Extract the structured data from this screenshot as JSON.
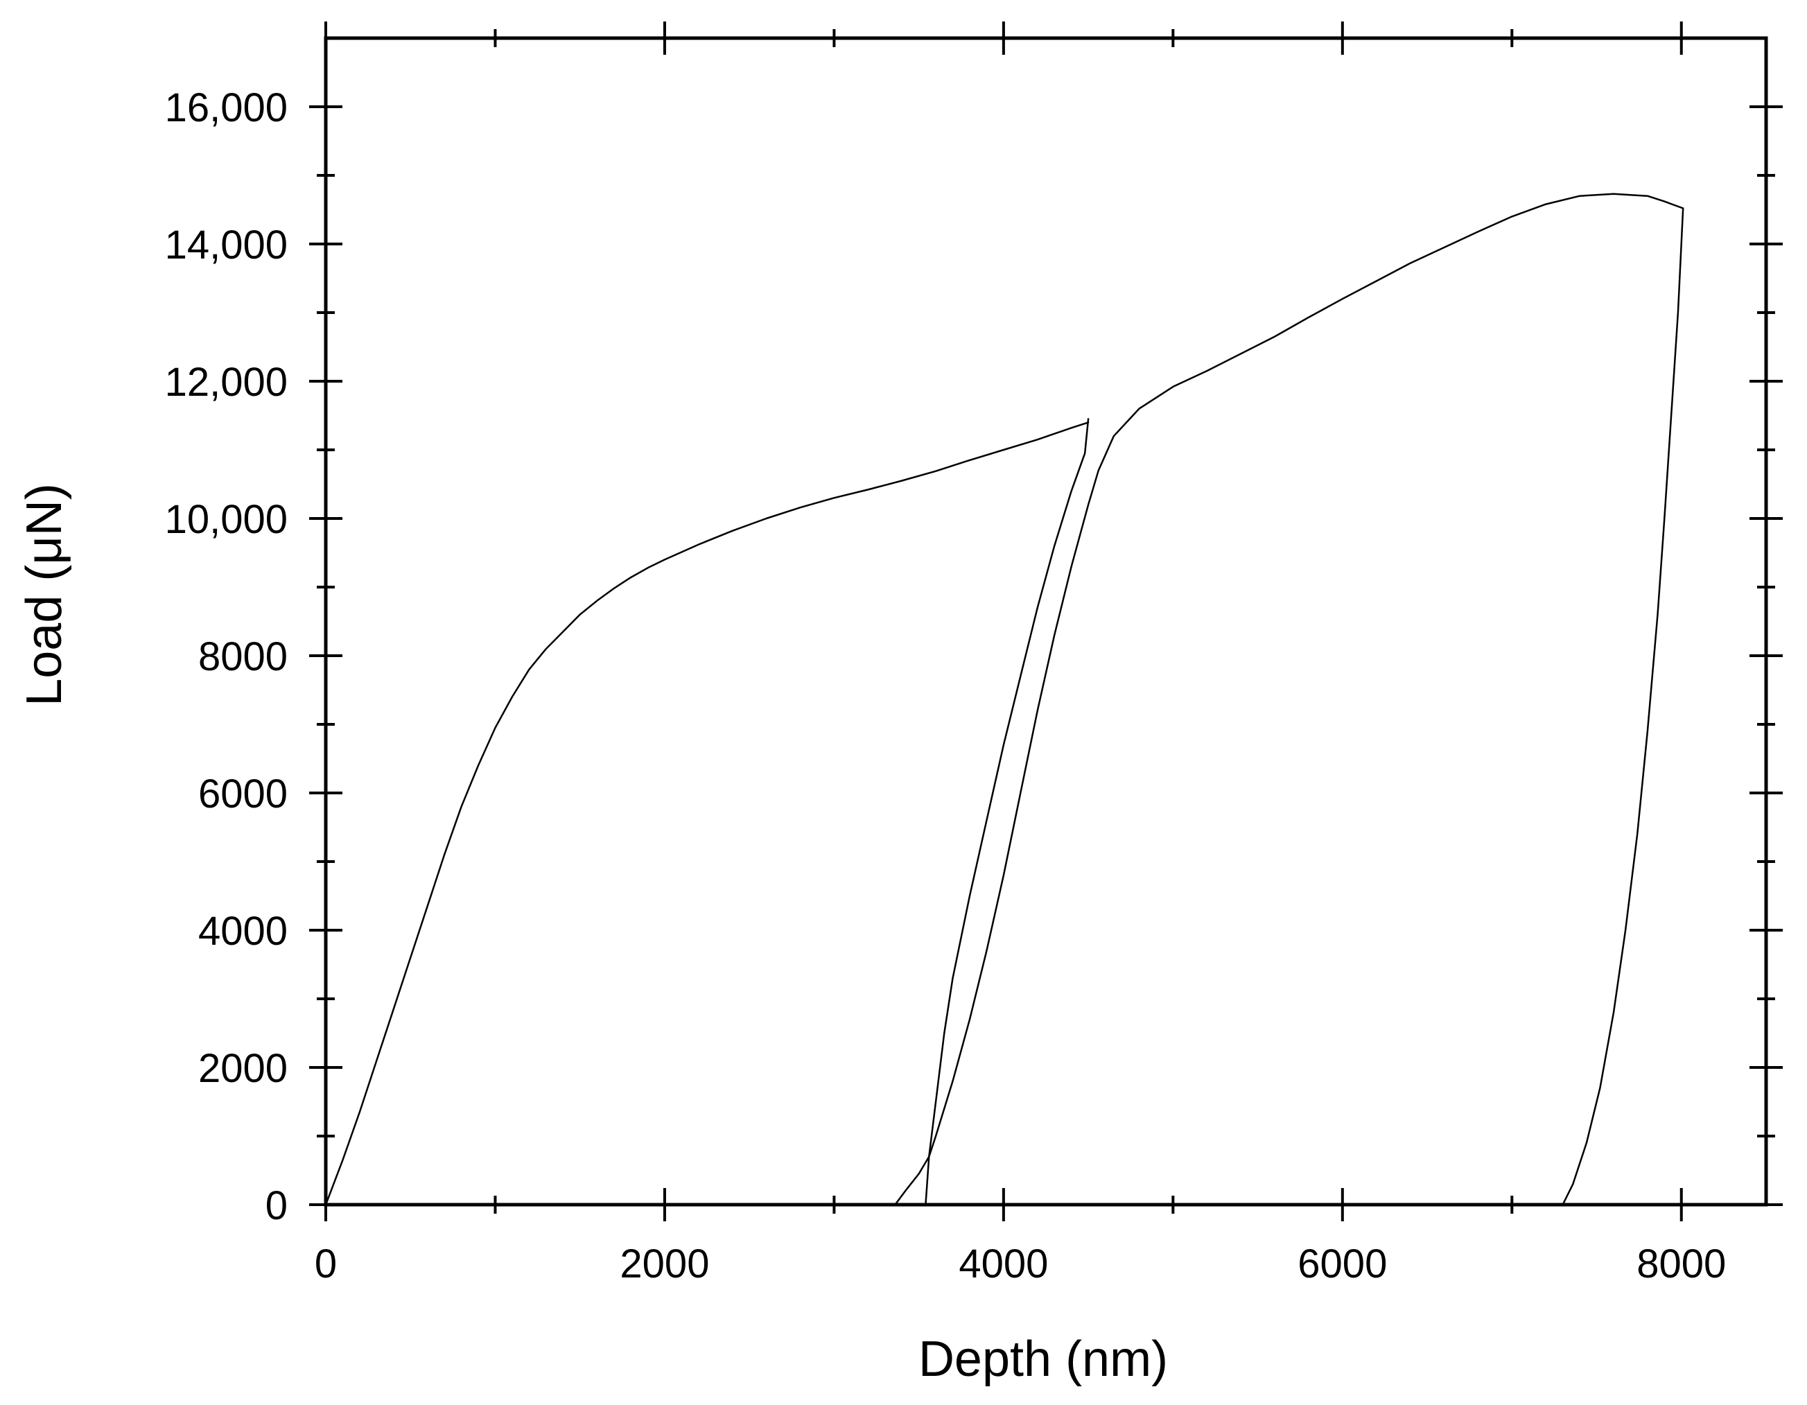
{
  "chart_data": {
    "type": "line",
    "title": "",
    "xlabel": "Depth (nm)",
    "ylabel": "Load (μN)",
    "xlim": [
      0,
      8500
    ],
    "ylim": [
      0,
      17000
    ],
    "grid": false,
    "legend": "none",
    "x_ticks": [
      {
        "value": 0,
        "label": "0"
      },
      {
        "value": 2000,
        "label": "2000"
      },
      {
        "value": 4000,
        "label": "4000"
      },
      {
        "value": 6000,
        "label": "6000"
      },
      {
        "value": 8000,
        "label": "8000"
      }
    ],
    "x_minor_ticks": [
      1000,
      3000,
      5000,
      7000
    ],
    "y_ticks": [
      {
        "value": 0,
        "label": "0"
      },
      {
        "value": 2000,
        "label": "2000"
      },
      {
        "value": 4000,
        "label": "4000"
      },
      {
        "value": 6000,
        "label": "6000"
      },
      {
        "value": 8000,
        "label": "8000"
      },
      {
        "value": 10000,
        "label": "10,000"
      },
      {
        "value": 12000,
        "label": "12,000"
      },
      {
        "value": 14000,
        "label": "14,000"
      },
      {
        "value": 16000,
        "label": "16,000"
      }
    ],
    "y_minor_ticks": [
      1000,
      3000,
      5000,
      7000,
      9000,
      11000,
      13000,
      15000
    ],
    "series": [
      {
        "color": "#000000",
        "points": [
          [
            0,
            0
          ],
          [
            100,
            650
          ],
          [
            200,
            1350
          ],
          [
            300,
            2100
          ],
          [
            400,
            2850
          ],
          [
            500,
            3600
          ],
          [
            600,
            4350
          ],
          [
            700,
            5100
          ],
          [
            800,
            5800
          ],
          [
            900,
            6400
          ],
          [
            1000,
            6950
          ],
          [
            1100,
            7400
          ],
          [
            1200,
            7800
          ],
          [
            1300,
            8100
          ],
          [
            1400,
            8350
          ],
          [
            1500,
            8600
          ],
          [
            1600,
            8800
          ],
          [
            1700,
            8980
          ],
          [
            1800,
            9140
          ],
          [
            1900,
            9280
          ],
          [
            2000,
            9400
          ],
          [
            2200,
            9620
          ],
          [
            2400,
            9820
          ],
          [
            2600,
            10000
          ],
          [
            2800,
            10160
          ],
          [
            3000,
            10300
          ],
          [
            3200,
            10420
          ],
          [
            3400,
            10550
          ],
          [
            3600,
            10690
          ],
          [
            3800,
            10850
          ],
          [
            4000,
            11000
          ],
          [
            4200,
            11150
          ],
          [
            4400,
            11320
          ],
          [
            4500,
            11400
          ]
        ]
      },
      {
        "color": "#000000",
        "points": [
          [
            4500,
            11450
          ],
          [
            4480,
            10950
          ],
          [
            4400,
            10400
          ],
          [
            4300,
            9600
          ],
          [
            4200,
            8700
          ],
          [
            4100,
            7700
          ],
          [
            4000,
            6700
          ],
          [
            3900,
            5600
          ],
          [
            3800,
            4500
          ],
          [
            3700,
            3300
          ],
          [
            3650,
            2500
          ],
          [
            3600,
            1500
          ],
          [
            3560,
            700
          ],
          [
            3540,
            0
          ]
        ]
      },
      {
        "color": "#000000",
        "points": [
          [
            3360,
            0
          ],
          [
            3420,
            200
          ],
          [
            3500,
            450
          ],
          [
            3560,
            700
          ],
          [
            3600,
            1000
          ],
          [
            3700,
            1800
          ],
          [
            3800,
            2700
          ],
          [
            3900,
            3700
          ],
          [
            4000,
            4800
          ],
          [
            4100,
            6000
          ],
          [
            4200,
            7200
          ],
          [
            4300,
            8300
          ],
          [
            4400,
            9300
          ],
          [
            4500,
            10200
          ],
          [
            4560,
            10700
          ],
          [
            4650,
            11200
          ],
          [
            4800,
            11600
          ],
          [
            5000,
            11920
          ],
          [
            5200,
            12150
          ],
          [
            5400,
            12400
          ],
          [
            5600,
            12650
          ],
          [
            5800,
            12930
          ],
          [
            6000,
            13200
          ],
          [
            6200,
            13460
          ],
          [
            6400,
            13720
          ],
          [
            6600,
            13950
          ],
          [
            6800,
            14180
          ],
          [
            7000,
            14400
          ],
          [
            7200,
            14580
          ],
          [
            7400,
            14700
          ],
          [
            7600,
            14730
          ],
          [
            7800,
            14700
          ],
          [
            7900,
            14620
          ],
          [
            8010,
            14520
          ]
        ]
      },
      {
        "color": "#000000",
        "points": [
          [
            8010,
            14520
          ],
          [
            7980,
            13000
          ],
          [
            7940,
            11500
          ],
          [
            7900,
            10000
          ],
          [
            7860,
            8600
          ],
          [
            7800,
            6900
          ],
          [
            7740,
            5400
          ],
          [
            7670,
            4000
          ],
          [
            7600,
            2800
          ],
          [
            7520,
            1700
          ],
          [
            7440,
            900
          ],
          [
            7360,
            300
          ],
          [
            7300,
            0
          ]
        ]
      }
    ]
  }
}
